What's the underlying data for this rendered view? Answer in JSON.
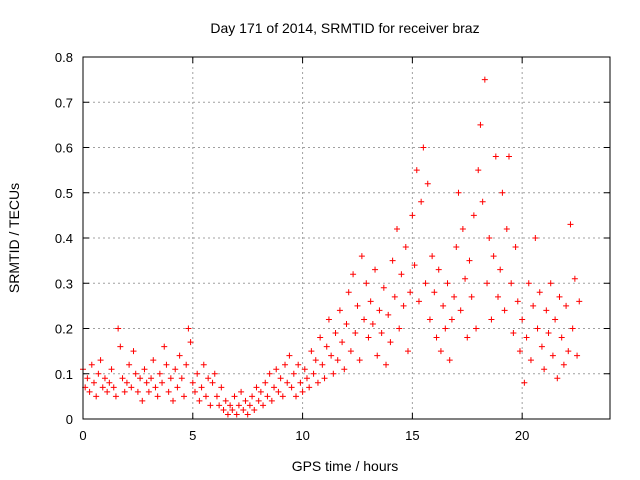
{
  "chart_data": {
    "type": "scatter",
    "title": "Day 171 of 2014, SRMTID for receiver braz",
    "xlabel": "GPS time / hours",
    "ylabel": "SRMTID / TECUs",
    "xlim": [
      0,
      24
    ],
    "ylim": [
      0,
      0.8
    ],
    "xticks": [
      0,
      5,
      10,
      15,
      20
    ],
    "yticks": [
      0,
      0.1,
      0.2,
      0.3,
      0.4,
      0.5,
      0.6,
      0.7,
      0.8
    ],
    "xtick_labels": [
      "0",
      "5",
      "10",
      "15",
      "20"
    ],
    "ytick_labels": [
      "0",
      "0.1",
      "0.2",
      "0.3",
      "0.4",
      "0.5",
      "0.6",
      "0.7",
      "0.8"
    ],
    "grid": true,
    "marker": "+",
    "color": "#ff0000",
    "series": [
      {
        "name": "braz",
        "points": [
          [
            0.0,
            0.11
          ],
          [
            0.1,
            0.07
          ],
          [
            0.2,
            0.09
          ],
          [
            0.3,
            0.06
          ],
          [
            0.4,
            0.12
          ],
          [
            0.5,
            0.08
          ],
          [
            0.6,
            0.05
          ],
          [
            0.7,
            0.1
          ],
          [
            0.8,
            0.13
          ],
          [
            0.9,
            0.07
          ],
          [
            1.0,
            0.09
          ],
          [
            1.1,
            0.06
          ],
          [
            1.2,
            0.08
          ],
          [
            1.3,
            0.11
          ],
          [
            1.4,
            0.07
          ],
          [
            1.5,
            0.05
          ],
          [
            1.6,
            0.2
          ],
          [
            1.7,
            0.16
          ],
          [
            1.8,
            0.09
          ],
          [
            1.9,
            0.06
          ],
          [
            2.0,
            0.08
          ],
          [
            2.1,
            0.12
          ],
          [
            2.2,
            0.07
          ],
          [
            2.3,
            0.15
          ],
          [
            2.4,
            0.1
          ],
          [
            2.5,
            0.06
          ],
          [
            2.6,
            0.09
          ],
          [
            2.7,
            0.04
          ],
          [
            2.8,
            0.11
          ],
          [
            2.9,
            0.08
          ],
          [
            3.0,
            0.06
          ],
          [
            3.1,
            0.09
          ],
          [
            3.2,
            0.13
          ],
          [
            3.3,
            0.07
          ],
          [
            3.4,
            0.05
          ],
          [
            3.5,
            0.1
          ],
          [
            3.6,
            0.08
          ],
          [
            3.7,
            0.16
          ],
          [
            3.8,
            0.12
          ],
          [
            3.9,
            0.06
          ],
          [
            4.0,
            0.09
          ],
          [
            4.1,
            0.04
          ],
          [
            4.2,
            0.11
          ],
          [
            4.3,
            0.07
          ],
          [
            4.4,
            0.14
          ],
          [
            4.5,
            0.09
          ],
          [
            4.6,
            0.05
          ],
          [
            4.7,
            0.12
          ],
          [
            4.8,
            0.2
          ],
          [
            4.9,
            0.17
          ],
          [
            5.0,
            0.08
          ],
          [
            5.1,
            0.06
          ],
          [
            5.2,
            0.1
          ],
          [
            5.3,
            0.04
          ],
          [
            5.4,
            0.07
          ],
          [
            5.5,
            0.12
          ],
          [
            5.6,
            0.05
          ],
          [
            5.7,
            0.09
          ],
          [
            5.8,
            0.03
          ],
          [
            5.9,
            0.08
          ],
          [
            6.0,
            0.1
          ],
          [
            6.1,
            0.05
          ],
          [
            6.2,
            0.03
          ],
          [
            6.3,
            0.07
          ],
          [
            6.4,
            0.02
          ],
          [
            6.5,
            0.04
          ],
          [
            6.6,
            0.01
          ],
          [
            6.7,
            0.03
          ],
          [
            6.8,
            0.02
          ],
          [
            6.9,
            0.05
          ],
          [
            7.0,
            0.01
          ],
          [
            7.1,
            0.03
          ],
          [
            7.2,
            0.06
          ],
          [
            7.3,
            0.02
          ],
          [
            7.4,
            0.04
          ],
          [
            7.5,
            0.01
          ],
          [
            7.6,
            0.03
          ],
          [
            7.7,
            0.05
          ],
          [
            7.8,
            0.02
          ],
          [
            7.9,
            0.07
          ],
          [
            8.0,
            0.04
          ],
          [
            8.1,
            0.06
          ],
          [
            8.2,
            0.03
          ],
          [
            8.3,
            0.08
          ],
          [
            8.4,
            0.05
          ],
          [
            8.5,
            0.1
          ],
          [
            8.6,
            0.04
          ],
          [
            8.7,
            0.07
          ],
          [
            8.8,
            0.11
          ],
          [
            8.9,
            0.06
          ],
          [
            9.0,
            0.09
          ],
          [
            9.1,
            0.05
          ],
          [
            9.2,
            0.12
          ],
          [
            9.3,
            0.08
          ],
          [
            9.4,
            0.14
          ],
          [
            9.5,
            0.07
          ],
          [
            9.6,
            0.1
          ],
          [
            9.7,
            0.05
          ],
          [
            9.8,
            0.12
          ],
          [
            9.9,
            0.08
          ],
          [
            10.0,
            0.06
          ],
          [
            10.1,
            0.11
          ],
          [
            10.2,
            0.09
          ],
          [
            10.3,
            0.07
          ],
          [
            10.4,
            0.15
          ],
          [
            10.5,
            0.1
          ],
          [
            10.6,
            0.13
          ],
          [
            10.7,
            0.08
          ],
          [
            10.8,
            0.18
          ],
          [
            10.9,
            0.12
          ],
          [
            11.0,
            0.09
          ],
          [
            11.1,
            0.16
          ],
          [
            11.2,
            0.22
          ],
          [
            11.3,
            0.14
          ],
          [
            11.4,
            0.1
          ],
          [
            11.5,
            0.19
          ],
          [
            11.6,
            0.13
          ],
          [
            11.7,
            0.24
          ],
          [
            11.8,
            0.17
          ],
          [
            11.9,
            0.11
          ],
          [
            12.0,
            0.21
          ],
          [
            12.1,
            0.28
          ],
          [
            12.2,
            0.15
          ],
          [
            12.3,
            0.32
          ],
          [
            12.4,
            0.19
          ],
          [
            12.5,
            0.25
          ],
          [
            12.6,
            0.13
          ],
          [
            12.7,
            0.36
          ],
          [
            12.8,
            0.22
          ],
          [
            12.9,
            0.3
          ],
          [
            13.0,
            0.18
          ],
          [
            13.1,
            0.26
          ],
          [
            13.2,
            0.21
          ],
          [
            13.3,
            0.33
          ],
          [
            13.4,
            0.14
          ],
          [
            13.5,
            0.24
          ],
          [
            13.6,
            0.19
          ],
          [
            13.7,
            0.29
          ],
          [
            13.8,
            0.12
          ],
          [
            13.9,
            0.23
          ],
          [
            14.0,
            0.17
          ],
          [
            14.1,
            0.35
          ],
          [
            14.2,
            0.27
          ],
          [
            14.3,
            0.42
          ],
          [
            14.4,
            0.2
          ],
          [
            14.5,
            0.32
          ],
          [
            14.6,
            0.25
          ],
          [
            14.7,
            0.38
          ],
          [
            14.8,
            0.15
          ],
          [
            14.9,
            0.28
          ],
          [
            15.0,
            0.45
          ],
          [
            15.1,
            0.34
          ],
          [
            15.2,
            0.55
          ],
          [
            15.3,
            0.26
          ],
          [
            15.4,
            0.48
          ],
          [
            15.5,
            0.6
          ],
          [
            15.6,
            0.3
          ],
          [
            15.7,
            0.52
          ],
          [
            15.8,
            0.22
          ],
          [
            15.9,
            0.36
          ],
          [
            16.0,
            0.28
          ],
          [
            16.1,
            0.18
          ],
          [
            16.2,
            0.33
          ],
          [
            16.3,
            0.15
          ],
          [
            16.4,
            0.25
          ],
          [
            16.5,
            0.2
          ],
          [
            16.6,
            0.3
          ],
          [
            16.7,
            0.13
          ],
          [
            16.8,
            0.22
          ],
          [
            16.9,
            0.27
          ],
          [
            17.0,
            0.38
          ],
          [
            17.1,
            0.5
          ],
          [
            17.2,
            0.24
          ],
          [
            17.3,
            0.42
          ],
          [
            17.4,
            0.31
          ],
          [
            17.5,
            0.18
          ],
          [
            17.6,
            0.35
          ],
          [
            17.7,
            0.27
          ],
          [
            17.8,
            0.45
          ],
          [
            17.9,
            0.2
          ],
          [
            18.0,
            0.55
          ],
          [
            18.1,
            0.65
          ],
          [
            18.2,
            0.48
          ],
          [
            18.3,
            0.75
          ],
          [
            18.4,
            0.3
          ],
          [
            18.5,
            0.4
          ],
          [
            18.6,
            0.22
          ],
          [
            18.7,
            0.36
          ],
          [
            18.8,
            0.58
          ],
          [
            18.9,
            0.27
          ],
          [
            19.0,
            0.33
          ],
          [
            19.1,
            0.5
          ],
          [
            19.2,
            0.24
          ],
          [
            19.3,
            0.42
          ],
          [
            19.4,
            0.58
          ],
          [
            19.5,
            0.3
          ],
          [
            19.6,
            0.19
          ],
          [
            19.7,
            0.38
          ],
          [
            19.8,
            0.26
          ],
          [
            19.9,
            0.15
          ],
          [
            20.0,
            0.22
          ],
          [
            20.1,
            0.08
          ],
          [
            20.2,
            0.18
          ],
          [
            20.3,
            0.3
          ],
          [
            20.4,
            0.13
          ],
          [
            20.5,
            0.25
          ],
          [
            20.6,
            0.4
          ],
          [
            20.7,
            0.2
          ],
          [
            20.8,
            0.28
          ],
          [
            20.9,
            0.16
          ],
          [
            21.0,
            0.11
          ],
          [
            21.1,
            0.24
          ],
          [
            21.2,
            0.19
          ],
          [
            21.3,
            0.3
          ],
          [
            21.4,
            0.14
          ],
          [
            21.5,
            0.22
          ],
          [
            21.6,
            0.09
          ],
          [
            21.7,
            0.27
          ],
          [
            21.8,
            0.18
          ],
          [
            21.9,
            0.12
          ],
          [
            22.0,
            0.25
          ],
          [
            22.1,
            0.15
          ],
          [
            22.2,
            0.43
          ],
          [
            22.3,
            0.2
          ],
          [
            22.4,
            0.31
          ],
          [
            22.5,
            0.14
          ],
          [
            22.6,
            0.26
          ]
        ]
      }
    ]
  }
}
